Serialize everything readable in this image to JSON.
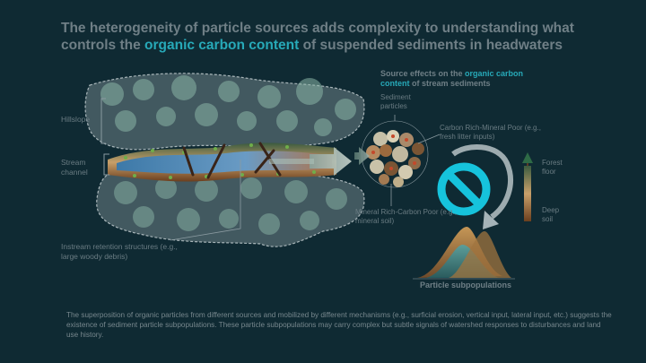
{
  "title": {
    "part1": "The heterogeneity of particle sources adds complexity to understanding what controls the ",
    "accent": "organic carbon content",
    "part2": " of suspended sediments in headwaters"
  },
  "source_effects": {
    "prefix": "Source effects on the ",
    "accent": "organic carbon content",
    "suffix": " of stream sediments"
  },
  "labels": {
    "hillslope": "Hillslope",
    "stream_channel": "Stream channel",
    "instream": "Instream retention structures (e.g., large woody debris)",
    "sediment_particles": "Sediment particles",
    "carbon_rich": "Carbon Rich-Mineral Poor (e.g., fresh litter inputs)",
    "mineral_rich": "Mineral Rich-Carbon Poor (e.g., mineral soil)",
    "forest_floor": "Forest floor",
    "deep_soil": "Deep soil",
    "particle_subpopulations": "Particle subpopulations"
  },
  "caption": "The superposition of organic particles from different sources and mobilized by different mechanisms (e.g., surficial erosion, vertical input, lateral input, etc.) suggests  the existence of sediment  particle subpopulations. These particle subpopulations may carry complex but subtle signals of watershed responses to disturbances and land use history.",
  "colors": {
    "background": "#0f2a33",
    "accent": "#27a9b8",
    "prohibition": "#16c3dc",
    "hillslope_fill": "#c9d3d6"
  }
}
